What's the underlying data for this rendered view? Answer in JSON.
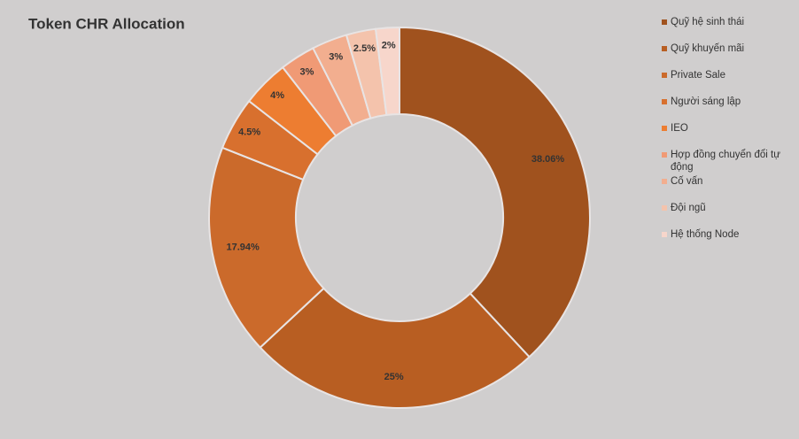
{
  "chart_data": {
    "type": "donut",
    "title": "Token CHR Allocation",
    "categories": [
      "Quỹ hệ sinh thái",
      "Quỹ khuyến mãi",
      "Private Sale",
      "Người sáng lập",
      "IEO",
      "Hợp đồng chuyển đổi tự động",
      "Cố vấn",
      "Đội ngũ",
      "Hệ thống Node"
    ],
    "values": [
      38.06,
      25,
      17.94,
      4.5,
      4,
      3,
      3,
      2.5,
      2
    ],
    "value_labels": [
      "38.06%",
      "25%",
      "17.94%",
      "4.5%",
      "4%",
      "3%",
      "3%",
      "2.5%",
      "2%"
    ],
    "colors": [
      "#a0521e",
      "#b85e22",
      "#cb6a2b",
      "#d8702e",
      "#ed7d31",
      "#f09a75",
      "#f2ae8f",
      "#f4c3ac",
      "#f7d6cb"
    ],
    "legend": "right"
  }
}
